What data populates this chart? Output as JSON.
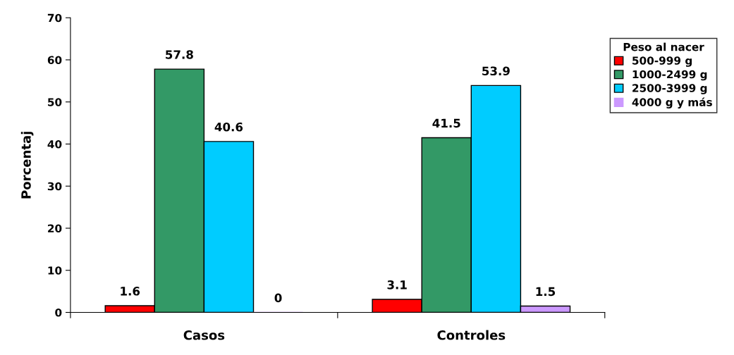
{
  "chart_data": {
    "type": "bar",
    "ylabel": "Porcentaj",
    "legend_title": "Peso al nacer",
    "categories": [
      "Casos",
      "Controles"
    ],
    "series": [
      {
        "name": "500-999 g",
        "color": "#ff0000",
        "values": [
          1.6,
          3.1
        ]
      },
      {
        "name": "1000-2499 g",
        "color": "#339966",
        "values": [
          57.8,
          41.5
        ]
      },
      {
        "name": "2500-3999 g",
        "color": "#00ccff",
        "values": [
          40.6,
          53.9
        ]
      },
      {
        "name": "4000 g y más",
        "color": "#cc99ff",
        "values": [
          0,
          1.5
        ]
      }
    ],
    "ylim": [
      0,
      70
    ],
    "yticks": [
      0,
      10,
      20,
      30,
      40,
      50,
      60,
      70
    ],
    "data_labels": true,
    "legend": "right",
    "grid": false
  }
}
